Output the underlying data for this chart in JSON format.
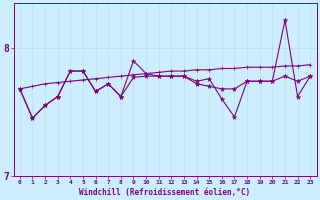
{
  "xlabel": "Windchill (Refroidissement éolien,°C)",
  "background_color": "#cceeff",
  "line_color": "#800080",
  "grid_color": "#b8e0e8",
  "x_values": [
    0,
    1,
    2,
    3,
    4,
    5,
    6,
    7,
    8,
    9,
    10,
    11,
    12,
    13,
    14,
    15,
    16,
    17,
    18,
    19,
    20,
    21,
    22,
    23
  ],
  "line_trend": [
    7.68,
    7.7,
    7.72,
    7.73,
    7.74,
    7.75,
    7.76,
    7.77,
    7.78,
    7.79,
    7.8,
    7.81,
    7.82,
    7.82,
    7.83,
    7.83,
    7.84,
    7.84,
    7.85,
    7.85,
    7.85,
    7.86,
    7.86,
    7.87
  ],
  "line_mid": [
    7.68,
    7.45,
    7.55,
    7.62,
    7.82,
    7.82,
    7.66,
    7.72,
    7.62,
    7.77,
    7.78,
    7.78,
    7.78,
    7.78,
    7.72,
    7.7,
    7.68,
    7.68,
    7.74,
    7.74,
    7.74,
    7.78,
    7.74,
    7.78
  ],
  "line_jagged": [
    7.68,
    7.45,
    7.55,
    7.62,
    7.82,
    7.82,
    7.66,
    7.72,
    7.62,
    7.9,
    7.8,
    7.78,
    7.78,
    7.78,
    7.74,
    7.76,
    7.6,
    7.46,
    7.74,
    7.74,
    7.74,
    8.22,
    7.62,
    7.78
  ],
  "ylim": [
    7.25,
    8.35
  ],
  "yticks": [
    7.0,
    8.0
  ],
  "xlim": [
    -0.5,
    23.5
  ]
}
